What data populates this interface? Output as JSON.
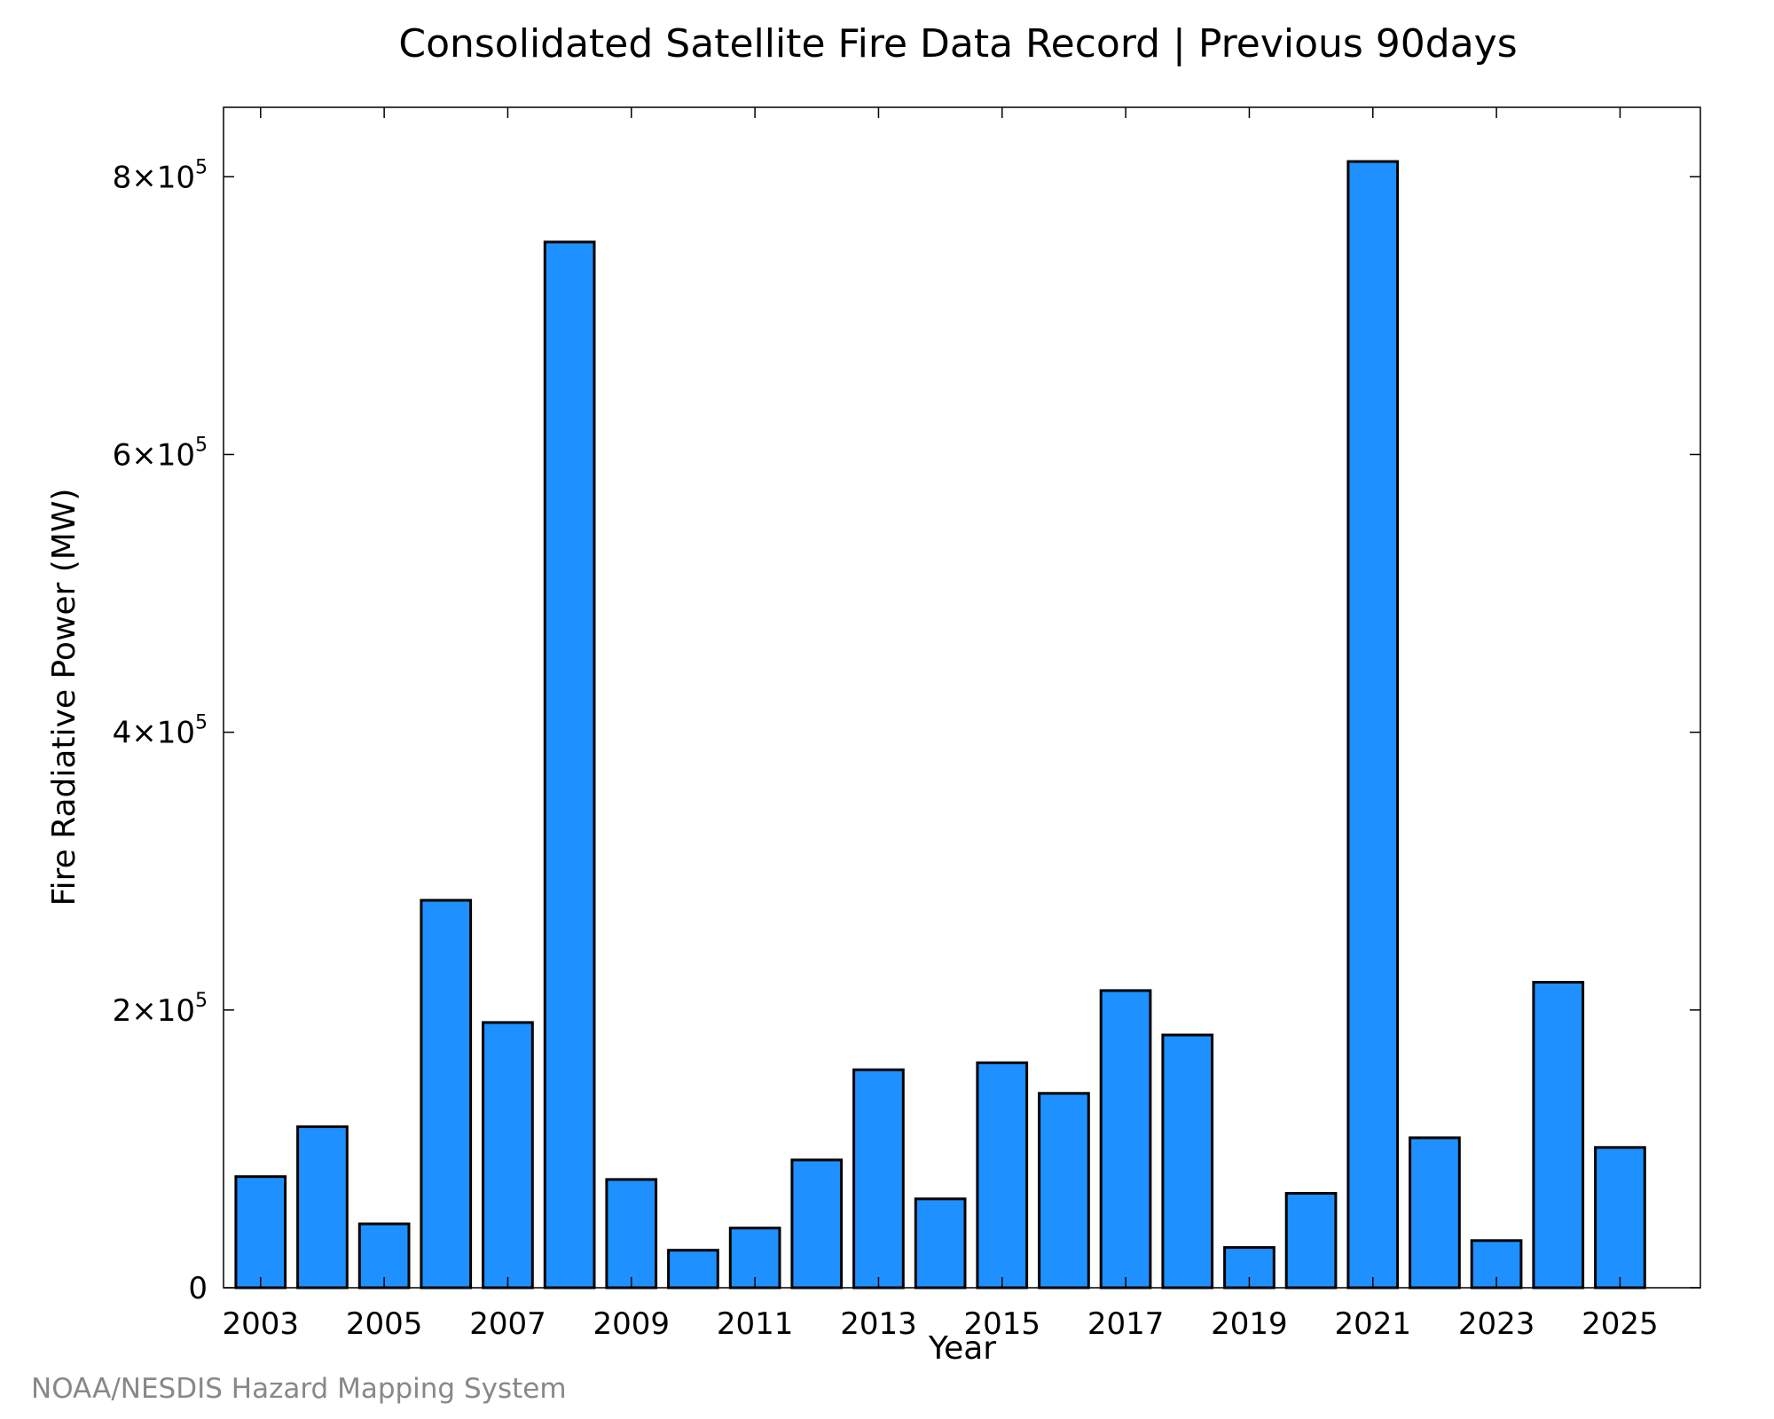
{
  "chart_data": {
    "type": "bar",
    "title": "Consolidated Satellite Fire Data Record | Previous 90days",
    "xlabel": "Year",
    "ylabel": "Fire Radiative Power (MW)",
    "categories": [
      "2003",
      "2004",
      "2005",
      "2006",
      "2007",
      "2008",
      "2009",
      "2010",
      "2011",
      "2012",
      "2013",
      "2014",
      "2015",
      "2016",
      "2017",
      "2018",
      "2019",
      "2020",
      "2021",
      "2022",
      "2023",
      "2024",
      "2025"
    ],
    "values": [
      80000,
      116000,
      46000,
      279000,
      191000,
      753000,
      78000,
      27000,
      43000,
      92000,
      157000,
      64000,
      162000,
      140000,
      214000,
      182000,
      29000,
      68000,
      811000,
      108000,
      34000,
      220000,
      101000
    ],
    "x_tick_labels": [
      "2003",
      "2005",
      "2007",
      "2009",
      "2011",
      "2013",
      "2015",
      "2017",
      "2019",
      "2021",
      "2023",
      "2025"
    ],
    "y_ticks": [
      {
        "value": 0,
        "mantissa": "0",
        "exponent": ""
      },
      {
        "value": 200000,
        "mantissa": "2×10",
        "exponent": "5"
      },
      {
        "value": 400000,
        "mantissa": "4×10",
        "exponent": "5"
      },
      {
        "value": 600000,
        "mantissa": "6×10",
        "exponent": "5"
      },
      {
        "value": 800000,
        "mantissa": "8×10",
        "exponent": "5"
      }
    ],
    "ylim": [
      0,
      850000
    ],
    "xlim": [
      2002.4,
      2026.3
    ],
    "grid": false,
    "bar_color": "#1e90ff",
    "bar_edge_color": "#000000"
  },
  "credit": "NOAA/NESDIS Hazard Mapping System"
}
